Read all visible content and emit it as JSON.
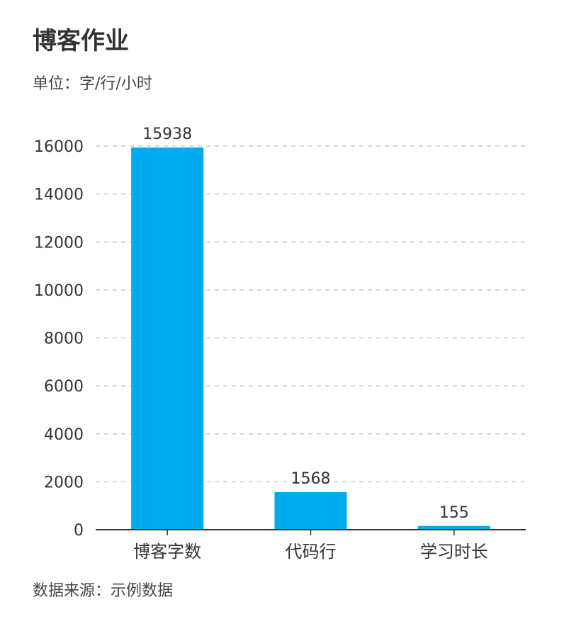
{
  "chart_data": {
    "type": "bar",
    "title": "博客作业",
    "subtitle": "单位：字/行/小时",
    "source": "数据来源：示例数据",
    "categories": [
      "博客字数",
      "代码行",
      "学习时长"
    ],
    "values": [
      15938,
      1568,
      155
    ],
    "ylim": [
      0,
      16000
    ],
    "yticks": [
      0,
      2000,
      4000,
      6000,
      8000,
      10000,
      12000,
      14000,
      16000
    ],
    "grid": true,
    "legend": "none",
    "bar_color": "#00aaee",
    "grid_color": "#cccccc",
    "axis_color": "#333333"
  }
}
